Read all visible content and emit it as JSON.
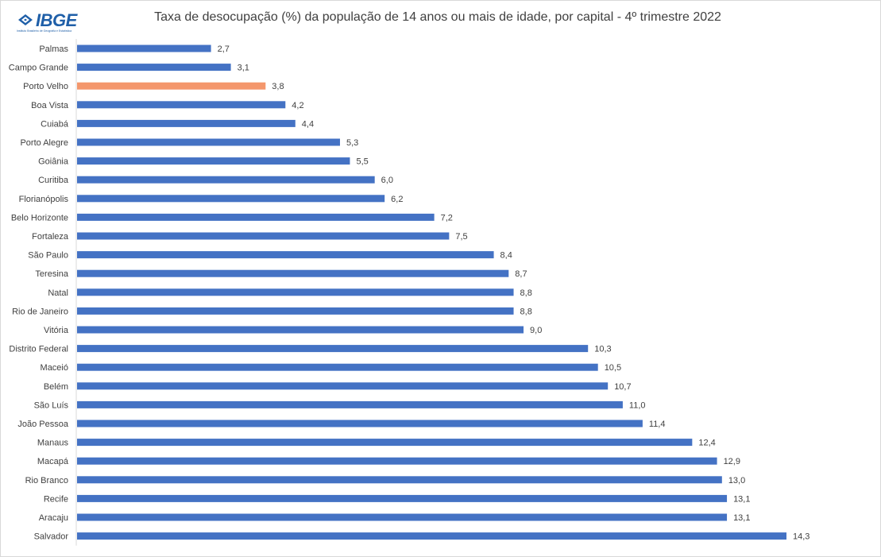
{
  "logo": {
    "text": "IBGE",
    "subtitle": "Instituto Brasileiro de Geografia e Estatística"
  },
  "colors": {
    "bar": "#4472c4",
    "highlight": "#f4976c",
    "axis": "#d9d9d9",
    "text": "#404040"
  },
  "chart_data": {
    "type": "bar",
    "orientation": "horizontal",
    "title": "Taxa de desocupação (%) da população de 14 anos ou mais de idade, por capital - 4º trimestre 2022",
    "xlabel": "",
    "ylabel": "",
    "xlim": [
      0,
      15
    ],
    "grid": false,
    "legend": "none",
    "highlight_category": "Porto Velho",
    "categories": [
      "Palmas",
      "Campo Grande",
      "Porto Velho",
      "Boa Vista",
      "Cuiabá",
      "Porto Alegre",
      "Goiânia",
      "Curitiba",
      "Florianópolis",
      "Belo Horizonte",
      "Fortaleza",
      "São Paulo",
      "Teresina",
      "Natal",
      "Rio de Janeiro",
      "Vitória",
      "Distrito Federal",
      "Maceió",
      "Belém",
      "São Luís",
      "João Pessoa",
      "Manaus",
      "Macapá",
      "Rio Branco",
      "Recife",
      "Aracaju",
      "Salvador"
    ],
    "values": [
      2.7,
      3.1,
      3.8,
      4.2,
      4.4,
      5.3,
      5.5,
      6.0,
      6.2,
      7.2,
      7.5,
      8.4,
      8.7,
      8.8,
      8.8,
      9.0,
      10.3,
      10.5,
      10.7,
      11.0,
      11.4,
      12.4,
      12.9,
      13.0,
      13.1,
      13.1,
      14.3
    ],
    "value_labels": [
      "2,7",
      "3,1",
      "3,8",
      "4,2",
      "4,4",
      "5,3",
      "5,5",
      "6,0",
      "6,2",
      "7,2",
      "7,5",
      "8,4",
      "8,7",
      "8,8",
      "8,8",
      "9,0",
      "10,3",
      "10,5",
      "10,7",
      "11,0",
      "11,4",
      "12,4",
      "12,9",
      "13,0",
      "13,1",
      "13,1",
      "14,3"
    ]
  }
}
